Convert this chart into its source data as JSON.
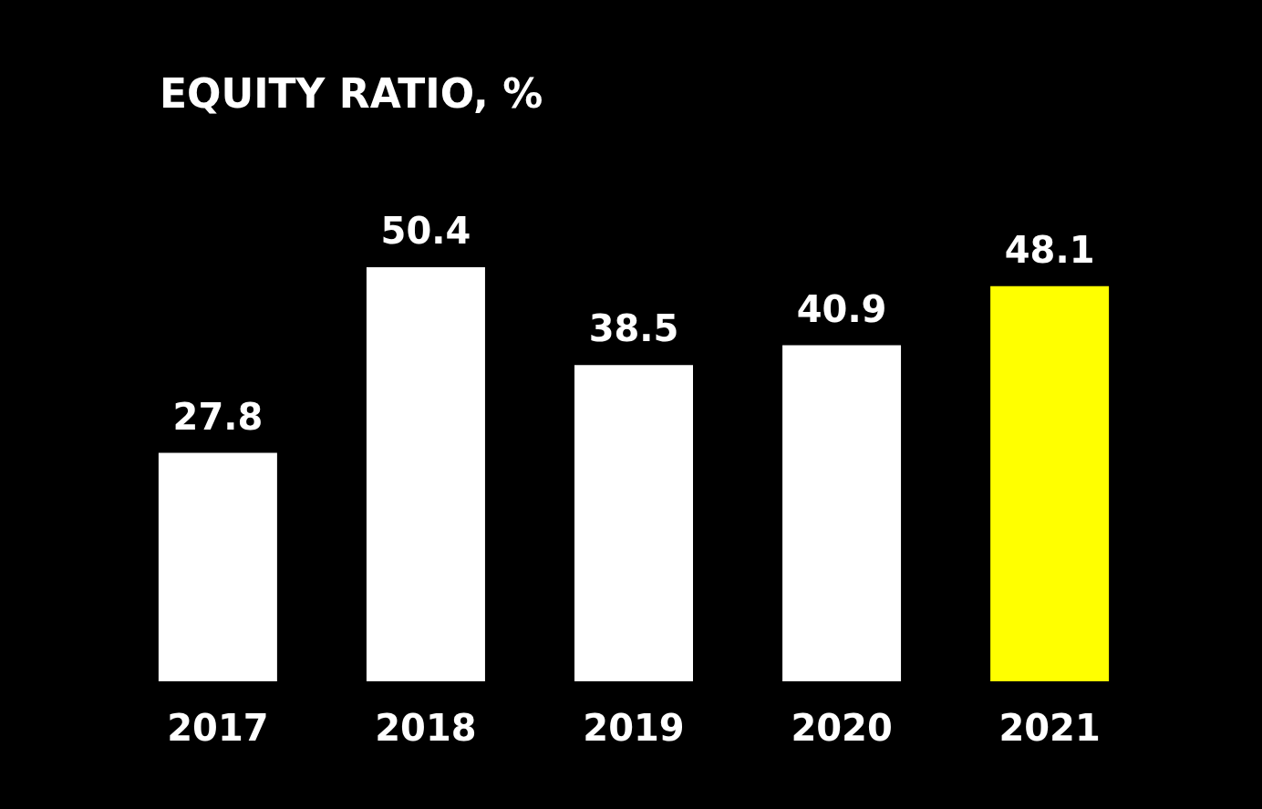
{
  "chart_data": {
    "type": "bar",
    "title": "EQUITY RATIO, %",
    "categories": [
      "2017",
      "2018",
      "2019",
      "2020",
      "2021"
    ],
    "values": [
      27.8,
      50.4,
      38.5,
      40.9,
      48.1
    ],
    "colors": [
      "#ffffff",
      "#ffffff",
      "#ffffff",
      "#ffffff",
      "#ffff00"
    ],
    "data_labels": true
  }
}
